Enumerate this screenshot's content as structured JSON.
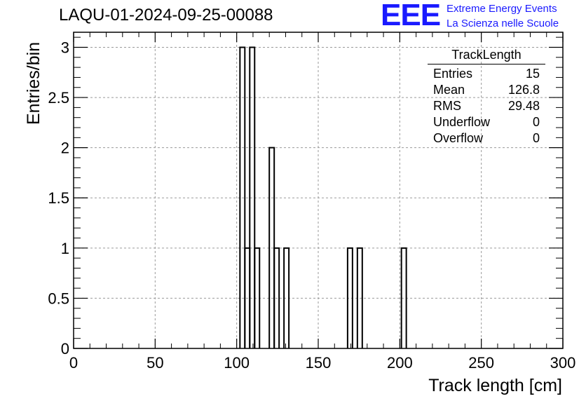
{
  "title": "LAQU-01-2024-09-25-00088",
  "logo": {
    "mark": "EEE",
    "line1": "Extreme Energy Events",
    "line2": "La Scienza nelle Scuole"
  },
  "stats": {
    "name": "TrackLength",
    "rows": [
      {
        "label": "Entries",
        "value": "15"
      },
      {
        "label": "Mean",
        "value": "126.8"
      },
      {
        "label": "RMS",
        "value": "29.48"
      },
      {
        "label": "Underflow",
        "value": "0"
      },
      {
        "label": "Overflow",
        "value": "0"
      }
    ]
  },
  "chart_data": {
    "type": "bar",
    "histogram": true,
    "title": "LAQU-01-2024-09-25-00088",
    "xlabel": "Track length [cm]",
    "ylabel": "Entries/bin",
    "xlim": [
      0,
      300
    ],
    "ylim": [
      0,
      3.15
    ],
    "bin_width": 3,
    "grid": true,
    "x_ticks": [
      "0",
      "50",
      "100",
      "150",
      "200",
      "250",
      "300"
    ],
    "y_ticks": [
      "0",
      "0.5",
      "1",
      "1.5",
      "2",
      "2.5",
      "3"
    ],
    "bins": [
      {
        "x0": 102,
        "x1": 105,
        "count": 3
      },
      {
        "x0": 105,
        "x1": 108,
        "count": 1
      },
      {
        "x0": 108,
        "x1": 111,
        "count": 3
      },
      {
        "x0": 111,
        "x1": 114,
        "count": 1
      },
      {
        "x0": 120,
        "x1": 123,
        "count": 2
      },
      {
        "x0": 123,
        "x1": 126,
        "count": 1
      },
      {
        "x0": 129,
        "x1": 132,
        "count": 1
      },
      {
        "x0": 168,
        "x1": 171,
        "count": 1
      },
      {
        "x0": 174,
        "x1": 177,
        "count": 1
      },
      {
        "x0": 201,
        "x1": 204,
        "count": 1
      }
    ]
  }
}
